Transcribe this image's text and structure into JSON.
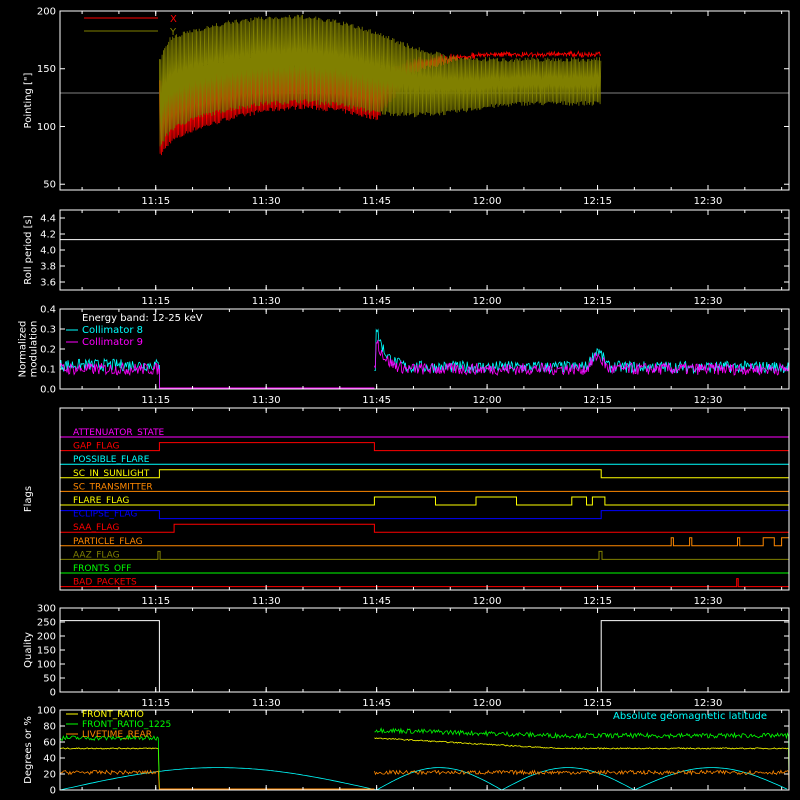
{
  "time_ticks": [
    "11:15",
    "11:30",
    "11:45",
    "12:00",
    "12:15",
    "12:30"
  ],
  "time_tick_minutes": [
    75,
    90,
    105,
    120,
    135,
    150
  ],
  "time_range_minutes": [
    62,
    161
  ],
  "chart_data": [
    {
      "type": "line",
      "ylabel": "Pointing [\"]",
      "ylim": [
        45,
        200
      ],
      "yticks": [
        50,
        100,
        150,
        200
      ],
      "legend": "top-left",
      "series": [
        {
          "name": "X",
          "color": "#ff0000",
          "x_minutes": [
            75.5,
            77,
            80,
            85,
            90,
            95,
            100,
            105,
            110,
            115,
            120,
            125,
            130,
            135.5
          ],
          "lower": [
            72,
            85,
            95,
            105,
            112,
            115,
            112,
            105,
            145,
            155,
            160,
            160,
            160,
            160
          ],
          "upper": [
            140,
            148,
            152,
            155,
            155,
            155,
            152,
            150,
            160,
            163,
            165,
            165,
            165,
            165
          ]
        },
        {
          "name": "Y",
          "color": "#808000",
          "x_minutes": [
            75.5,
            77,
            80,
            85,
            90,
            95,
            100,
            105,
            110,
            115,
            120,
            125,
            130,
            135.5
          ],
          "lower": [
            80,
            95,
            105,
            113,
            118,
            120,
            117,
            110,
            108,
            110,
            115,
            118,
            118,
            118
          ],
          "upper": [
            160,
            178,
            185,
            192,
            196,
            197,
            192,
            183,
            170,
            162,
            160,
            160,
            160,
            160
          ]
        }
      ],
      "baseline": {
        "value": 129,
        "color": "#aaaaaa"
      }
    },
    {
      "type": "line",
      "ylabel": "Roll period [s]",
      "ylim": [
        3.5,
        4.5
      ],
      "yticks": [
        3.6,
        3.8,
        4.0,
        4.2,
        4.4
      ],
      "series": [
        {
          "name": "",
          "color": "#ffffff",
          "x": [
            62,
            161
          ],
          "y": [
            4.13,
            4.13
          ]
        }
      ]
    },
    {
      "type": "line",
      "ylabel": "Normalized modulation",
      "ylabel_lines": [
        "Normalized",
        "modulation"
      ],
      "ylim": [
        0,
        0.4
      ],
      "yticks": [
        0.0,
        0.1,
        0.2,
        0.3,
        0.4
      ],
      "annotation": "Energy band: 12-25 keV",
      "legend": "top-left",
      "series": [
        {
          "name": "Collimator 8",
          "color": "#00ffff",
          "segments": [
            [
              62,
              75.5,
              0.12
            ],
            [
              104.7,
              161,
              0.11
            ]
          ],
          "spike_at": 104.9,
          "spike_value": 0.32,
          "bump_at": 135,
          "bump_value": 0.2
        },
        {
          "name": "Collimator 9",
          "color": "#ff00ff",
          "segments": [
            [
              62,
              75.5,
              0.1
            ],
            [
              104.7,
              161,
              0.1
            ]
          ],
          "spike_at": 104.9,
          "spike_value": 0.26,
          "bump_at": 135,
          "bump_value": 0.17
        }
      ],
      "gap": {
        "x": [
          75.5,
          104.7
        ],
        "value": 0.0,
        "color": "#ff00ff"
      }
    },
    {
      "type": "line",
      "ylabel": "Flags",
      "flags": [
        {
          "name": "ATTENUATOR_STATE",
          "color": "#ff00ff",
          "highs": []
        },
        {
          "name": "GAP_FLAG",
          "color": "#ff0000",
          "highs": [
            [
              75.5,
              104.7
            ]
          ]
        },
        {
          "name": "POSSIBLE_FLARE",
          "color": "#00ffff",
          "highs": []
        },
        {
          "name": "SC_IN_SUNLIGHT",
          "color": "#ffff00",
          "highs": [
            [
              75.5,
              135.5
            ]
          ]
        },
        {
          "name": "SC_TRANSMITTER",
          "color": "#ff8800",
          "highs": []
        },
        {
          "name": "FLARE_FLAG",
          "color": "#ffff00",
          "highs": [
            [
              104.7,
              113
            ],
            [
              118.5,
              124
            ],
            [
              131.5,
              133.5
            ],
            [
              134.3,
              136
            ]
          ]
        },
        {
          "name": "ECLIPSE_FLAG",
          "color": "#0000ff",
          "highs": [
            [
              62,
              75.5
            ],
            [
              135.5,
              161
            ]
          ]
        },
        {
          "name": "SAA_FLAG",
          "color": "#ff0000",
          "highs": [
            [
              77.5,
              104.7
            ]
          ]
        },
        {
          "name": "PARTICLE_FLAG",
          "color": "#ff8800",
          "highs": [
            [
              145,
              145.3
            ],
            [
              147.5,
              147.8
            ],
            [
              154,
              154.3
            ],
            [
              157.5,
              159
            ],
            [
              160,
              161
            ]
          ]
        },
        {
          "name": "AAZ_FLAG",
          "color": "#808000",
          "highs": [
            [
              75.3,
              75.6
            ],
            [
              135.2,
              135.6
            ]
          ]
        },
        {
          "name": "FRONTS_OFF",
          "color": "#00ff00",
          "highs": []
        },
        {
          "name": "BAD_PACKETS",
          "color": "#ff0000",
          "highs": [
            [
              153.9,
              154.1
            ]
          ]
        }
      ]
    },
    {
      "type": "line",
      "ylabel": "Quality",
      "ylim": [
        0,
        300
      ],
      "yticks": [
        0,
        50,
        100,
        150,
        200,
        250,
        300
      ],
      "series": [
        {
          "name": "",
          "color": "#ffffff",
          "x": [
            62,
            75.5,
            75.5,
            135.5,
            135.5,
            161
          ],
          "y": [
            255,
            255,
            0,
            0,
            255,
            255
          ]
        }
      ]
    },
    {
      "type": "line",
      "ylabel": "Degrees or %",
      "ylim": [
        0,
        100
      ],
      "yticks": [
        0,
        20,
        40,
        60,
        80,
        100
      ],
      "annotation": "Absolute geomagnetic latitude",
      "annotation_color": "#00ffff",
      "legend": "top-left",
      "series": [
        {
          "name": "FRONT_RATIO",
          "color": "#ffff00",
          "segments": [
            [
              62,
              75.5,
              52
            ],
            [
              104.7,
              161,
              52
            ]
          ],
          "start_value": 65
        },
        {
          "name": "FRONT_RATIO_1225",
          "color": "#00ff00",
          "segments": [
            [
              62,
              75.5,
              65
            ],
            [
              104.7,
              161,
              68
            ]
          ],
          "start_value": 75
        },
        {
          "name": "LIVETIME_REAR",
          "color": "#ff8800",
          "segments": [
            [
              62,
              75.5,
              22
            ],
            [
              104.7,
              161,
              22
            ]
          ],
          "start_value": 22
        },
        {
          "name": "Absolute geomagnetic latitude",
          "color": "#00ffff",
          "wave_minima": [
            62,
            105,
            122,
            140,
            161
          ],
          "wave_peak": 28
        }
      ],
      "gap": {
        "x": [
          75.5,
          104.7
        ],
        "value": 0
      }
    }
  ]
}
